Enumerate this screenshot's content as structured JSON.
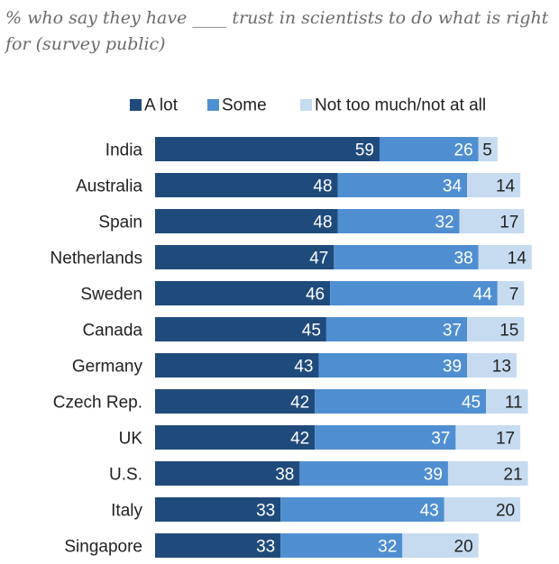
{
  "subtitle": "% who say they have ____ trust in scientists to do what is right for (survey public)",
  "chart_data": {
    "type": "bar",
    "orientation": "horizontal",
    "stacked": true,
    "legend_position": "top",
    "categories": [
      "India",
      "Australia",
      "Spain",
      "Netherlands",
      "Sweden",
      "Canada",
      "Germany",
      "Czech Rep.",
      "UK",
      "U.S.",
      "Italy",
      "Singapore"
    ],
    "series": [
      {
        "name": "A lot",
        "color": "#1f4a7c",
        "label_color": "#ffffff",
        "values": [
          59,
          48,
          48,
          47,
          46,
          45,
          43,
          42,
          42,
          38,
          33,
          33
        ]
      },
      {
        "name": "Some",
        "color": "#4f8fd1",
        "label_color": "#ffffff",
        "values": [
          26,
          34,
          32,
          38,
          44,
          37,
          39,
          45,
          37,
          39,
          43,
          32
        ]
      },
      {
        "name": "Not too much/not at all",
        "color": "#c6dbf0",
        "label_color": "#222222",
        "values": [
          5,
          14,
          17,
          14,
          7,
          15,
          13,
          11,
          17,
          21,
          20,
          20
        ]
      }
    ]
  }
}
